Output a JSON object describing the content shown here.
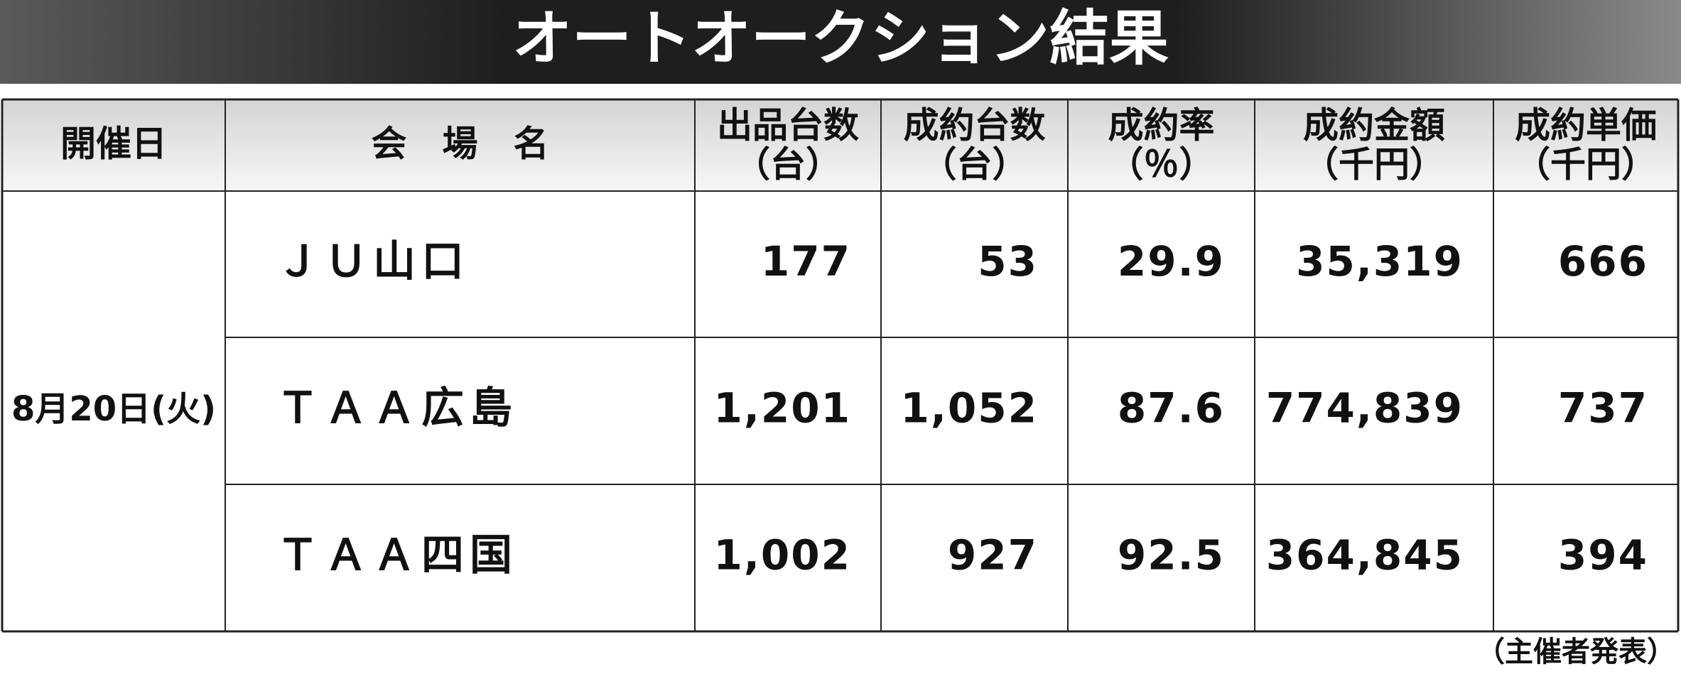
{
  "header": {
    "title": "オートオークション結果"
  },
  "table": {
    "columns": [
      {
        "label": "開催日"
      },
      {
        "label": "会　場　名"
      },
      {
        "label": "出品台数",
        "unit": "（台）"
      },
      {
        "label": "成約台数",
        "unit": "（台）"
      },
      {
        "label": "成約率",
        "unit": "（％）"
      },
      {
        "label": "成約金額",
        "unit": "（千円）"
      },
      {
        "label": "成約単価",
        "unit": "（千円）"
      }
    ],
    "date": "8月20日(火)",
    "rows": [
      [
        "ＪＵ山口",
        "177",
        "53",
        "29.9",
        "35,319",
        "666"
      ],
      [
        "ＴＡＡ広島",
        "1,201",
        "1,052",
        "87.6",
        "774,839",
        "737"
      ],
      [
        "ＴＡＡ四国",
        "1,002",
        "927",
        "92.5",
        "364,845",
        "394"
      ]
    ]
  },
  "footer": {
    "source": "（主催者発表）"
  }
}
